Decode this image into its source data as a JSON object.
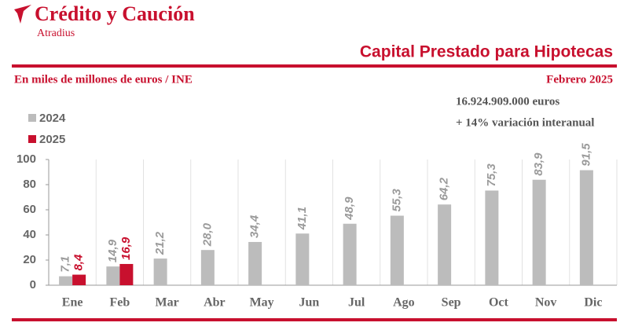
{
  "brand": {
    "name": "Crédito y Caución",
    "sub": "Atradius"
  },
  "chart_data": {
    "type": "bar",
    "title": "Capital Prestado para Hipotecas",
    "subtitle": "En miles de millones de euros / INE",
    "period": "Febrero 2025",
    "annotations": [
      "16.924.909.000  euros",
      "+ 14% variación interanual"
    ],
    "categories": [
      "Ene",
      "Feb",
      "Mar",
      "Abr",
      "May",
      "Jun",
      "Jul",
      "Ago",
      "Sep",
      "Oct",
      "Nov",
      "Dic"
    ],
    "series": [
      {
        "name": "2024",
        "color": "#bcbcbc",
        "label_color": "#9a9a9a",
        "values": [
          7.1,
          14.9,
          21.2,
          28.0,
          34.4,
          41.1,
          48.9,
          55.3,
          64.2,
          75.3,
          83.9,
          91.5
        ],
        "value_labels": [
          "7,1",
          "14,9",
          "21,2",
          "28,0",
          "34,4",
          "41,1",
          "48,9",
          "55,3",
          "64,2",
          "75,3",
          "83,9",
          "91,5"
        ]
      },
      {
        "name": "2025",
        "color": "#c8102e",
        "label_color": "#c8102e",
        "values": [
          8.4,
          16.9,
          null,
          null,
          null,
          null,
          null,
          null,
          null,
          null,
          null,
          null
        ],
        "value_labels": [
          "8,4",
          "16,9",
          null,
          null,
          null,
          null,
          null,
          null,
          null,
          null,
          null,
          null
        ]
      }
    ],
    "ylim": [
      0,
      100
    ],
    "yticks": [
      0,
      20,
      40,
      60,
      80,
      100
    ],
    "legend": "top-left"
  }
}
